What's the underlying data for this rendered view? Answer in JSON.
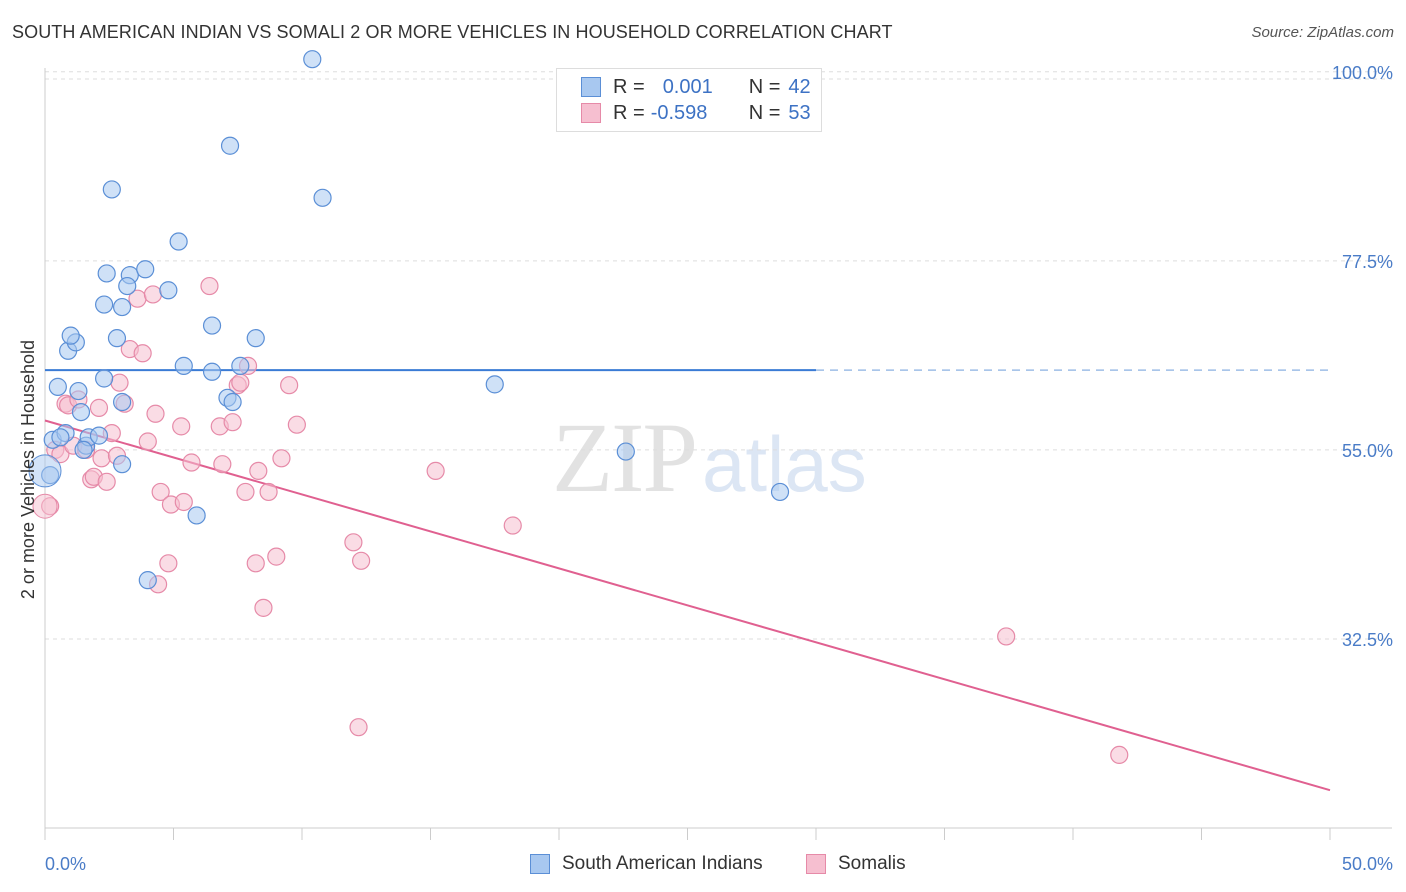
{
  "title": "SOUTH AMERICAN INDIAN VS SOMALI 2 OR MORE VEHICLES IN HOUSEHOLD CORRELATION CHART",
  "source": "Source: ZipAtlas.com",
  "watermark": {
    "zip": "ZIP",
    "atlas": "atlas"
  },
  "legend": {
    "rows": [
      {
        "r_label": "R =",
        "r_value": "0.001",
        "n_label": "N =",
        "n_value": "42"
      },
      {
        "r_label": "R =",
        "r_value": "-0.598",
        "n_label": "N =",
        "n_value": "53"
      }
    ]
  },
  "colors": {
    "blue_fill": "#a8c8f0",
    "blue_stroke": "#5b8fd6",
    "blue_line": "#3a7bd5",
    "pink_fill": "#f6bfd0",
    "pink_stroke": "#e68aa8",
    "pink_line": "#e06090",
    "axis_text": "#4a7cc7",
    "grid": "#dddddd"
  },
  "chart_data": {
    "type": "scatter",
    "title": "SOUTH AMERICAN INDIAN VS SOMALI 2 OR MORE VEHICLES IN HOUSEHOLD CORRELATION CHART",
    "xlabel": "",
    "ylabel": "2 or more Vehicles in Household",
    "xlim": [
      0,
      50
    ],
    "ylim": [
      10,
      102
    ],
    "x_tick_labels": [
      "0.0%",
      "50.0%"
    ],
    "y_ticks": [
      32.5,
      55.0,
      77.5,
      100.0
    ],
    "y_tick_labels": [
      "32.5%",
      "55.0%",
      "77.5%",
      "100.0%"
    ],
    "grid": true,
    "legend_position": "bottom-center",
    "series": [
      {
        "name": "South American Indians",
        "color": "#a8c8f0",
        "trend": {
          "x0": 0,
          "y0": 64.5,
          "x1": 30,
          "y1": 64.5,
          "dashed_to": 50
        },
        "points": [
          [
            0.3,
            56.2
          ],
          [
            0.8,
            57.0
          ],
          [
            0.5,
            62.5
          ],
          [
            0.9,
            66.8
          ],
          [
            1.2,
            67.8
          ],
          [
            1.0,
            68.6
          ],
          [
            1.3,
            62.0
          ],
          [
            1.4,
            59.5
          ],
          [
            1.6,
            55.5
          ],
          [
            1.7,
            56.5
          ],
          [
            2.1,
            56.7
          ],
          [
            2.3,
            63.5
          ],
          [
            2.6,
            86.0
          ],
          [
            2.8,
            68.3
          ],
          [
            3.0,
            72.0
          ],
          [
            2.3,
            72.3
          ],
          [
            2.4,
            76.0
          ],
          [
            3.3,
            75.8
          ],
          [
            3.2,
            74.5
          ],
          [
            3.0,
            60.7
          ],
          [
            3.0,
            53.3
          ],
          [
            3.9,
            76.5
          ],
          [
            4.8,
            74.0
          ],
          [
            5.2,
            79.8
          ],
          [
            5.4,
            65.0
          ],
          [
            6.5,
            64.3
          ],
          [
            6.5,
            69.8
          ],
          [
            7.2,
            91.2
          ],
          [
            7.1,
            61.2
          ],
          [
            7.3,
            60.7
          ],
          [
            7.6,
            65.0
          ],
          [
            8.2,
            68.3
          ],
          [
            10.4,
            101.5
          ],
          [
            10.8,
            85.0
          ],
          [
            4.0,
            39.5
          ],
          [
            5.9,
            47.2
          ],
          [
            17.5,
            62.8
          ],
          [
            22.6,
            54.8
          ],
          [
            28.6,
            50.0
          ],
          [
            0.2,
            52.0
          ],
          [
            0.6,
            56.5
          ],
          [
            1.5,
            55.0
          ]
        ]
      },
      {
        "name": "Somalis",
        "color": "#f6bfd0",
        "trend": {
          "x0": 0,
          "y0": 58.5,
          "x1": 50,
          "y1": 14.5
        },
        "points": [
          [
            0.2,
            48.3
          ],
          [
            0.4,
            55.0
          ],
          [
            0.6,
            54.5
          ],
          [
            0.8,
            60.5
          ],
          [
            0.9,
            60.3
          ],
          [
            1.1,
            55.5
          ],
          [
            1.3,
            61.0
          ],
          [
            1.6,
            55.0
          ],
          [
            1.8,
            51.5
          ],
          [
            1.9,
            51.8
          ],
          [
            2.1,
            60.0
          ],
          [
            2.2,
            54.0
          ],
          [
            2.4,
            51.2
          ],
          [
            2.6,
            57.0
          ],
          [
            2.8,
            54.3
          ],
          [
            2.9,
            63.0
          ],
          [
            3.1,
            60.5
          ],
          [
            3.3,
            67.0
          ],
          [
            3.6,
            73.0
          ],
          [
            4.2,
            73.5
          ],
          [
            4.3,
            59.3
          ],
          [
            4.0,
            56.0
          ],
          [
            4.5,
            50.0
          ],
          [
            4.9,
            48.5
          ],
          [
            5.3,
            57.8
          ],
          [
            5.4,
            48.8
          ],
          [
            4.8,
            41.5
          ],
          [
            4.4,
            39.0
          ],
          [
            5.7,
            53.5
          ],
          [
            6.4,
            74.5
          ],
          [
            6.8,
            57.8
          ],
          [
            6.9,
            53.3
          ],
          [
            7.3,
            58.3
          ],
          [
            7.5,
            62.7
          ],
          [
            7.6,
            63.0
          ],
          [
            7.8,
            50.0
          ],
          [
            7.9,
            65.0
          ],
          [
            8.3,
            52.5
          ],
          [
            8.2,
            41.5
          ],
          [
            8.5,
            36.2
          ],
          [
            8.7,
            50.0
          ],
          [
            9.0,
            42.3
          ],
          [
            9.2,
            54.0
          ],
          [
            9.5,
            62.7
          ],
          [
            9.8,
            58.0
          ],
          [
            12.0,
            44.0
          ],
          [
            12.3,
            41.8
          ],
          [
            12.2,
            22.0
          ],
          [
            15.2,
            52.5
          ],
          [
            18.2,
            46.0
          ],
          [
            37.4,
            32.8
          ],
          [
            41.8,
            18.7
          ],
          [
            3.8,
            66.5
          ]
        ]
      }
    ]
  },
  "bottom_legend": [
    {
      "label": "South American Indians"
    },
    {
      "label": "Somalis"
    }
  ]
}
